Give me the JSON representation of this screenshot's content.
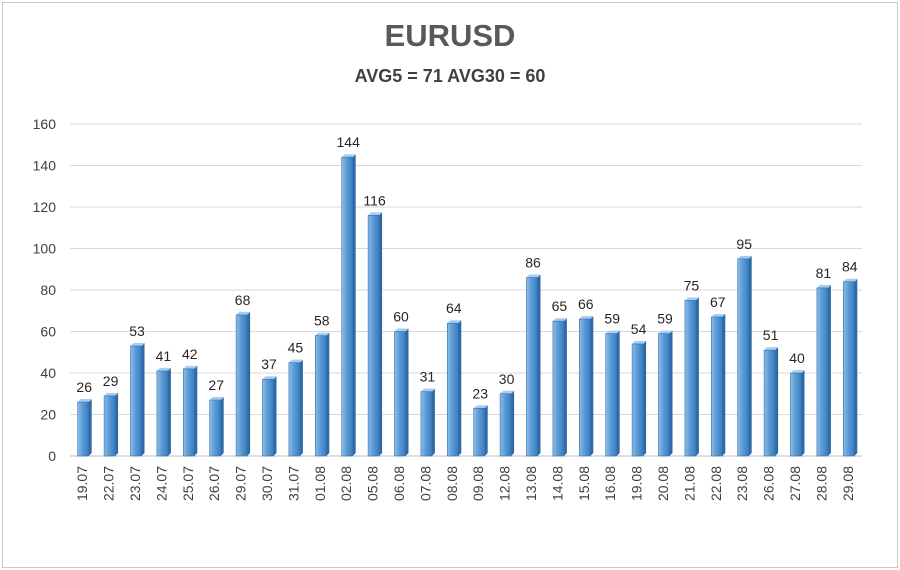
{
  "chart_data": {
    "type": "bar",
    "title": "EURUSD",
    "subtitle": "AVG5 = 71 AVG30 = 60",
    "categories": [
      "19.07",
      "22.07",
      "23.07",
      "24.07",
      "25.07",
      "26.07",
      "29.07",
      "30.07",
      "31.07",
      "01.08",
      "02.08",
      "05.08",
      "06.08",
      "07.08",
      "08.08",
      "09.08",
      "12.08",
      "13.08",
      "14.08",
      "15.08",
      "16.08",
      "19.08",
      "20.08",
      "21.08",
      "22.08",
      "23.08",
      "26.08",
      "27.08",
      "28.08",
      "29.08"
    ],
    "values": [
      26,
      29,
      53,
      41,
      42,
      27,
      68,
      37,
      45,
      58,
      144,
      116,
      60,
      31,
      64,
      23,
      30,
      86,
      65,
      66,
      59,
      54,
      59,
      75,
      67,
      95,
      51,
      40,
      81,
      84
    ],
    "ylim": [
      0,
      160
    ],
    "yticks": [
      0,
      20,
      40,
      60,
      80,
      100,
      120,
      140,
      160
    ],
    "grid": true,
    "bar_color": "#5b9bd5",
    "bar_edge_color": "#2e75b6",
    "xlabel": "",
    "ylabel": ""
  }
}
